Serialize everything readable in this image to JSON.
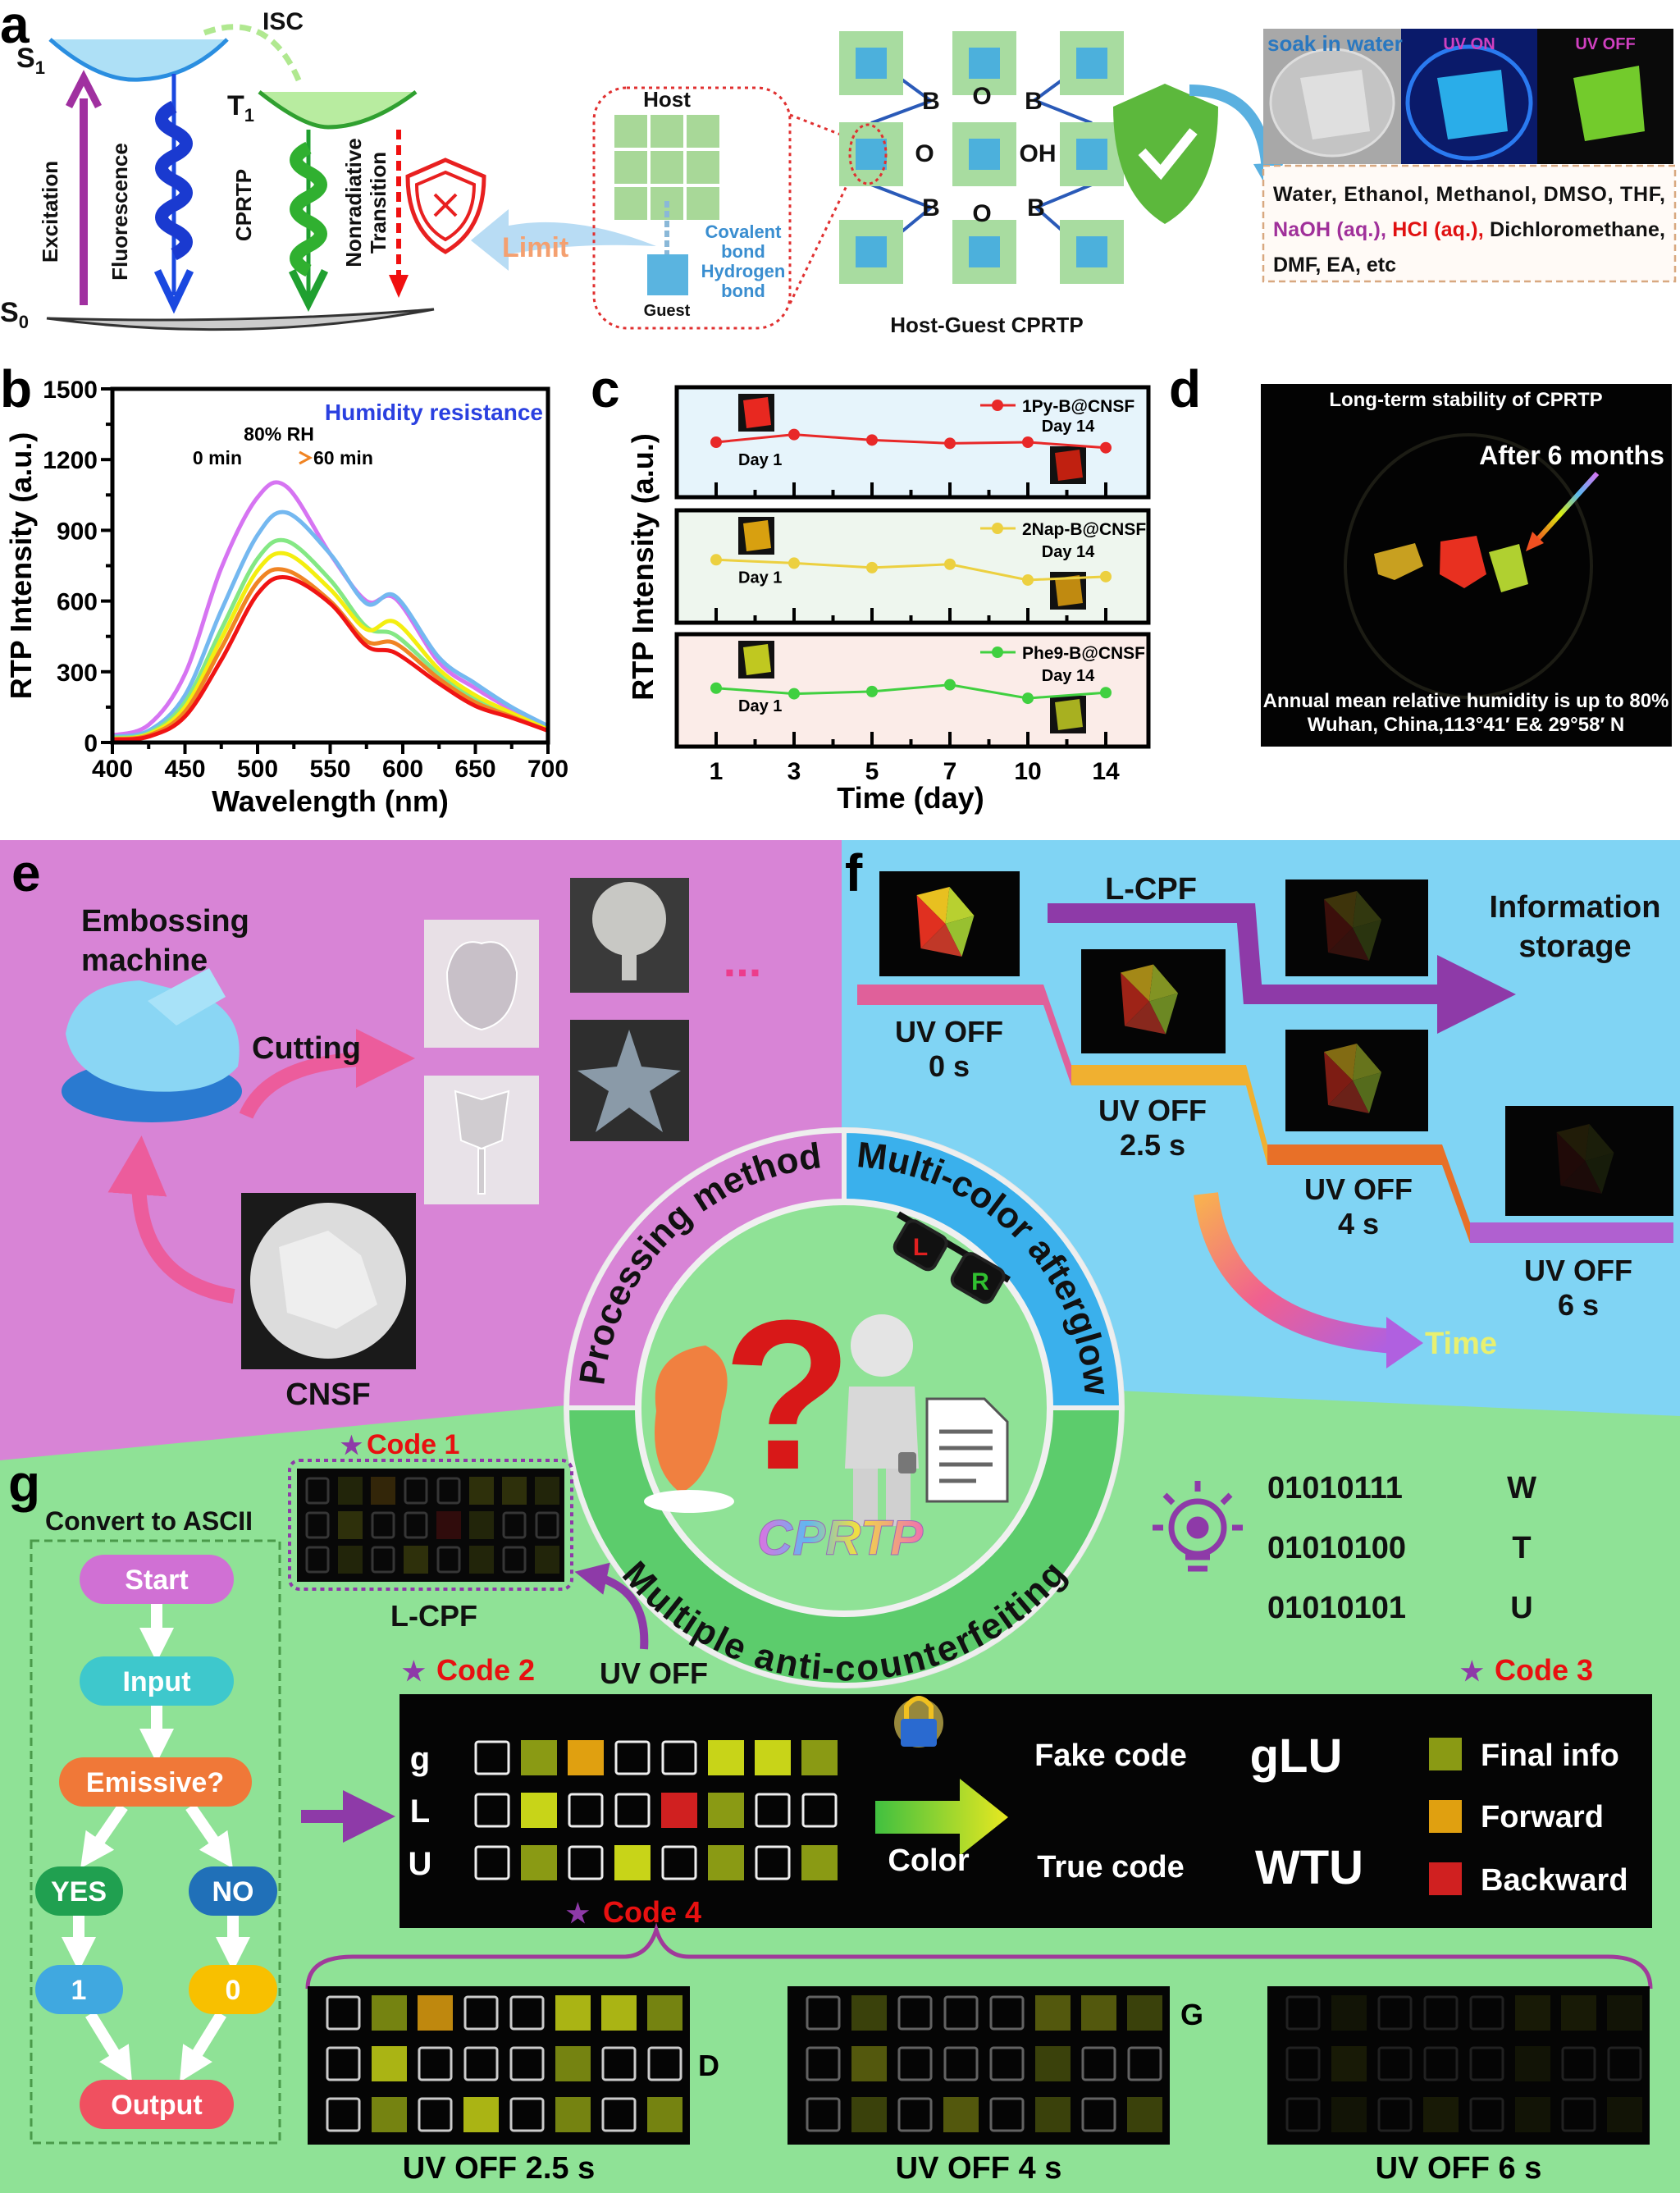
{
  "figure": {
    "panel_labels": {
      "a": "a",
      "b": "b",
      "c": "c",
      "d": "d",
      "e": "e",
      "f": "f",
      "g": "g"
    },
    "panel_a": {
      "s1": {
        "main": "S",
        "sub": "1"
      },
      "t1": {
        "main": "T",
        "sub": "1"
      },
      "s0": {
        "main": "S",
        "sub": "0"
      },
      "isc": "ISC",
      "excitation": "Excitation",
      "fluorescence": "Fluorescence",
      "cprtp": "CPRTP",
      "nonradiative": [
        "Nonradiative",
        "Transition"
      ],
      "limit": "Limit",
      "host": "Host",
      "guest": "Guest",
      "bond_labels": [
        "Covalent",
        "bond",
        "Hydrogen",
        "bond"
      ],
      "framework_atoms": [
        "B",
        "O",
        "B",
        "O",
        "OH",
        "B",
        "O",
        "B"
      ],
      "caption": "Host-Guest CPRTP",
      "photo_labels": [
        "soak in water",
        "UV ON",
        "UV OFF"
      ],
      "solvents": [
        [
          {
            "t": "Water, Ethanol, Methanol, DMSO, THF,"
          }
        ],
        [
          {
            "t": "NaOH (aq.),"
          },
          {
            "t": " HCl (aq.),"
          },
          {
            "t": " Dichloromethane,"
          }
        ],
        [
          {
            "t": "DMF, EA, etc"
          }
        ]
      ]
    },
    "panel_d": {
      "title": "Long-term stability of CPRTP",
      "callout": "After 6 months",
      "footer": [
        "Annual mean relative humidity is up to 80%",
        "Wuhan, China,113°41′ E& 29°58′ N"
      ]
    },
    "panel_e": {
      "machine": [
        "Embossing",
        "machine"
      ],
      "cutting": "Cutting",
      "material": "CNSF",
      "more": "..."
    },
    "panel_f": {
      "lcpf": "L-CPF",
      "storage": [
        "Information",
        "storage"
      ],
      "steps": [
        [
          "UV OFF",
          "0 s"
        ],
        [
          "UV OFF",
          "2.5 s"
        ],
        [
          "UV OFF",
          "4 s"
        ],
        [
          "UV OFF",
          "6 s"
        ]
      ],
      "time": "Time"
    },
    "center": {
      "processing": "Processing method",
      "afterglow": "Multi-color afterglow",
      "anticounterfeit": "Multiple anti-counterfeiting",
      "brand": "CPRTP"
    },
    "panel_g": {
      "flow_title": "Convert to ASCII",
      "flow": {
        "start": "Start",
        "input": "Input",
        "decision": "Emissive?",
        "yes": "YES",
        "no": "NO",
        "one": "1",
        "zero": "0",
        "output": "Output"
      },
      "code1": "Code 1",
      "code2": "Code 2",
      "code3": "Code 3",
      "code4": "Code 4",
      "lcpf": "L-CPF",
      "uv_off": "UV OFF",
      "binary": [
        {
          "bits": "01010111",
          "char": "W"
        },
        {
          "bits": "01010100",
          "char": "T"
        },
        {
          "bits": "01010101",
          "char": "U"
        }
      ],
      "row_labels": [
        "g",
        "L",
        "U"
      ],
      "code_rows": [
        "0go00yyg",
        "0y00rg00",
        "0g0y0g0g"
      ],
      "color_label": "Color",
      "fake_label": "Fake code",
      "fake_value": "gLU",
      "true_label": "True code",
      "true_value": "WTU",
      "legend": [
        {
          "label": "Final info",
          "color": "#8a9a14"
        },
        {
          "label": "Forward",
          "color": "#e0a010"
        },
        {
          "label": "Backward",
          "color": "#d02020"
        }
      ],
      "timed_grids": [
        {
          "label": "UV OFF 2.5 s",
          "rows": [
            "0go00yyg",
            "0y000g00",
            "0g0y0g0g"
          ],
          "glow": 0.85,
          "side_letter": "D"
        },
        {
          "label": "UV OFF 4 s",
          "rows": [
            "0g000yyg",
            "0y000g00",
            "0g0y0g0g"
          ],
          "glow": 0.4,
          "side_letter": "G"
        },
        {
          "label": "UV OFF 6 s",
          "rows": [
            "0g000yyg",
            "0y000g00",
            "0g0y0g0g"
          ],
          "glow": 0.1,
          "side_letter": ""
        }
      ]
    },
    "colors": {
      "pink_bg": "#d884d6",
      "blue_bg": "#80d4f4",
      "green_bg": "#8fe296",
      "accent_purple": "#8e3aa8",
      "code_red": "#e81010"
    }
  },
  "chart_data": [
    {
      "type": "line",
      "panel": "b",
      "xlabel": "Wavelength (nm)",
      "ylabel": "RTP Intensity (a.u.)",
      "xlim": [
        400,
        700
      ],
      "ylim": [
        0,
        1500
      ],
      "xticks": [
        400,
        450,
        500,
        550,
        600,
        650,
        700
      ],
      "yticks": [
        0,
        300,
        600,
        900,
        1200,
        1500
      ],
      "annotation": "Humidity resistance",
      "legend_title": "80% RH",
      "legend_range": [
        "0 min",
        "60 min"
      ],
      "grid": false,
      "x": [
        400,
        425,
        450,
        475,
        500,
        520,
        550,
        575,
        595,
        625,
        650,
        675,
        700
      ],
      "series": [
        {
          "color": "#d674f2",
          "values": [
            30,
            75,
            290,
            740,
            1040,
            1085,
            800,
            600,
            610,
            340,
            230,
            140,
            65
          ]
        },
        {
          "color": "#74b8f0",
          "values": [
            25,
            50,
            200,
            560,
            880,
            975,
            800,
            590,
            620,
            360,
            250,
            150,
            70
          ]
        },
        {
          "color": "#84e884",
          "values": [
            20,
            40,
            170,
            480,
            780,
            855,
            690,
            490,
            455,
            290,
            185,
            120,
            55
          ]
        },
        {
          "color": "#f4ee10",
          "values": [
            15,
            35,
            150,
            440,
            730,
            800,
            650,
            480,
            510,
            310,
            200,
            125,
            55
          ]
        },
        {
          "color": "#f08424",
          "values": [
            15,
            30,
            130,
            400,
            680,
            730,
            600,
            430,
            420,
            270,
            170,
            110,
            50
          ]
        },
        {
          "color": "#f01414",
          "values": [
            12,
            25,
            110,
            350,
            630,
            700,
            590,
            410,
            380,
            250,
            155,
            105,
            50
          ]
        }
      ]
    },
    {
      "type": "line",
      "panel": "c",
      "xlabel": "Time (day)",
      "ylabel": "RTP Intensity (a.u.)",
      "categories": [
        1,
        3,
        5,
        7,
        10,
        14
      ],
      "ylim": [
        0,
        100
      ],
      "grid": false,
      "annotations": [
        "Day 1",
        "Day 14"
      ],
      "series": [
        {
          "name": "1Py-B@CNSF",
          "color": "#e82828",
          "bg": "#e6f4fb",
          "values": [
            50,
            57,
            52,
            49,
            50,
            45
          ]
        },
        {
          "name": "2Nap-B@CNSF",
          "color": "#ecd040",
          "bg": "#eef6ee",
          "values": [
            56,
            53,
            49,
            52,
            38,
            41
          ]
        },
        {
          "name": "Phe9-B@CNSF",
          "color": "#40d040",
          "bg": "#fbece8",
          "values": [
            52,
            47,
            49,
            55,
            43,
            48
          ]
        }
      ]
    }
  ]
}
